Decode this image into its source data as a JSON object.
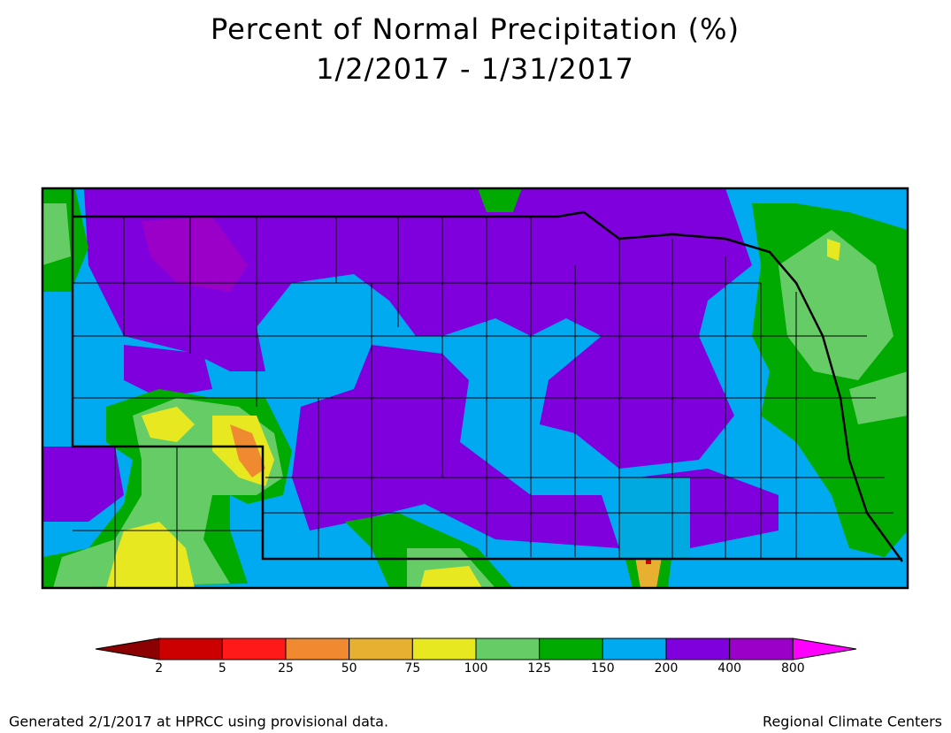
{
  "header": {
    "title": "Percent of Normal Precipitation (%)",
    "subtitle": "1/2/2017 - 1/31/2017"
  },
  "legend": {
    "labels": [
      "2",
      "5",
      "25",
      "50",
      "75",
      "100",
      "125",
      "150",
      "200",
      "400",
      "800"
    ],
    "colors": [
      "#8b0000",
      "#cc0000",
      "#ff1a1a",
      "#f08a30",
      "#e8b030",
      "#e8e820",
      "#66cc66",
      "#00aa00",
      "#00aaf0",
      "#8000dd",
      "#9a00c8",
      "#ff00ff"
    ]
  },
  "footer": {
    "left": "Generated 2/1/2017 at HPRCC using provisional data.",
    "right": "Regional Climate Centers"
  }
}
